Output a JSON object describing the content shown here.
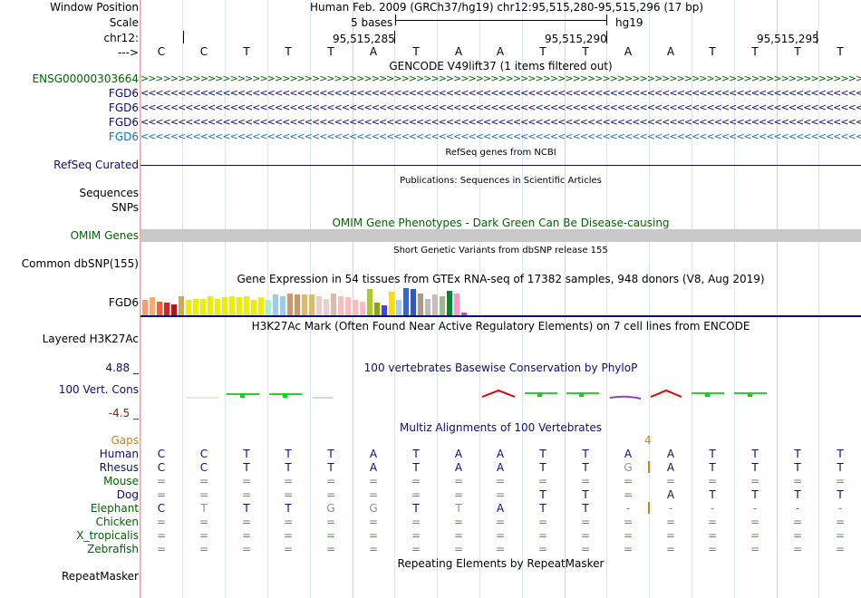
{
  "header": {
    "window_position_label": "Window Position",
    "scale_label": "Scale",
    "chrom_label": "chr12:",
    "strand_label": "--->",
    "assembly_text": "Human Feb. 2009 (GRCh37/hg19)   chr12:95,515,280-95,515,296 (17 bp)",
    "scale_text": "5 bases",
    "scale_assembly": "hg19",
    "ruler_positions": [
      "95,515,285",
      "95,515,290",
      "95,515,295"
    ]
  },
  "sequence": [
    "C",
    "C",
    "T",
    "T",
    "T",
    "A",
    "T",
    "A",
    "A",
    "T",
    "T",
    "A",
    "A",
    "T",
    "T",
    "T",
    "T"
  ],
  "tracks": {
    "gencode": {
      "title": "GENCODE V49lift37 (1 items filtered out)",
      "genes": [
        {
          "name": "ENSG00000303664",
          "color": "#006400",
          "glyph": ">"
        },
        {
          "name": "FGD6",
          "color": "#0c0c78",
          "glyph": "<"
        },
        {
          "name": "FGD6",
          "color": "#0c0c78",
          "glyph": "<"
        },
        {
          "name": "FGD6",
          "color": "#0c0c78",
          "glyph": "<"
        },
        {
          "name": "FGD6",
          "color": "#1c6eb4",
          "glyph": "<"
        }
      ]
    },
    "refseq": {
      "title": "RefSeq genes from NCBI",
      "label": "RefSeq Curated",
      "color": "#0c0c78"
    },
    "publications": {
      "title": "Publications: Sequences in Scientific Articles",
      "label": "Sequences"
    },
    "snps_label": "SNPs",
    "omim": {
      "title": "OMIM Gene Phenotypes - Dark Green Can Be Disease-causing",
      "label": "OMIM Genes",
      "color": "#006400"
    },
    "dbsnp": {
      "title": "Short Genetic Variants from dbSNP release 155",
      "label": "Common dbSNP(155)"
    },
    "gtex": {
      "title": "Gene Expression in 54 tissues from GTEx RNA-seq of 17382 samples, 948 donors (V8, Aug 2019)",
      "label": "FGD6",
      "bars": [
        {
          "v": 0.55,
          "c": "#ff9a6a"
        },
        {
          "v": 0.65,
          "c": "#ffaa6a"
        },
        {
          "v": 0.5,
          "c": "#ff5a33"
        },
        {
          "v": 0.45,
          "c": "#dd2222"
        },
        {
          "v": 0.4,
          "c": "#bb1111"
        },
        {
          "v": 0.7,
          "c": "#ccaa55"
        },
        {
          "v": 0.55,
          "c": "#eeee00"
        },
        {
          "v": 0.6,
          "c": "#eeee00"
        },
        {
          "v": 0.6,
          "c": "#eeee00"
        },
        {
          "v": 0.7,
          "c": "#eeee00"
        },
        {
          "v": 0.6,
          "c": "#eeee00"
        },
        {
          "v": 0.65,
          "c": "#eeee00"
        },
        {
          "v": 0.7,
          "c": "#eeee00"
        },
        {
          "v": 0.65,
          "c": "#eeee00"
        },
        {
          "v": 0.7,
          "c": "#eeee00"
        },
        {
          "v": 0.55,
          "c": "#eeee00"
        },
        {
          "v": 0.65,
          "c": "#eeee00"
        },
        {
          "v": 0.55,
          "c": "#aaeecc"
        },
        {
          "v": 0.75,
          "c": "#99ccee"
        },
        {
          "v": 0.7,
          "c": "#99ccee"
        },
        {
          "v": 0.8,
          "c": "#cc9966"
        },
        {
          "v": 0.75,
          "c": "#cc9966"
        },
        {
          "v": 0.75,
          "c": "#ddbb66"
        },
        {
          "v": 0.75,
          "c": "#ddbb66"
        },
        {
          "v": 0.7,
          "c": "#eecccc"
        },
        {
          "v": 0.6,
          "c": "#eecccc"
        },
        {
          "v": 0.8,
          "c": "#ddbbaa"
        },
        {
          "v": 0.7,
          "c": "#ffbbbb"
        },
        {
          "v": 0.65,
          "c": "#ffbbbb"
        },
        {
          "v": 0.55,
          "c": "#ffbbbb"
        },
        {
          "v": 0.5,
          "c": "#ffbbbb"
        },
        {
          "v": 0.95,
          "c": "#aacc22"
        },
        {
          "v": 0.45,
          "c": "#88aa00"
        },
        {
          "v": 0.35,
          "c": "#4444ee"
        },
        {
          "v": 0.85,
          "c": "#ffdd00"
        },
        {
          "v": 0.55,
          "c": "#aaccee"
        },
        {
          "v": 1.0,
          "c": "#3366dd"
        },
        {
          "v": 0.95,
          "c": "#3355cc"
        },
        {
          "v": 0.8,
          "c": "#aa9988"
        },
        {
          "v": 0.6,
          "c": "#bbbbbb"
        },
        {
          "v": 0.75,
          "c": "#ccbbbb"
        },
        {
          "v": 0.7,
          "c": "#99bb88"
        },
        {
          "v": 0.9,
          "c": "#008833"
        },
        {
          "v": 0.8,
          "c": "#ff99cc"
        },
        {
          "v": 0.1,
          "c": "#cc44cc"
        }
      ]
    },
    "h3k27ac": {
      "title": "H3K27Ac Mark (Often Found Near Active Regulatory Elements) on 7 cell lines from ENCODE",
      "label": "Layered H3K27Ac"
    },
    "phylop": {
      "title": "100 vertebrates Basewise Conservation by PhyloP",
      "label": "100 Vert. Cons",
      "max_label": "4.88 _",
      "min_label": "-4.5 _",
      "max_color": "#0c0c78",
      "min_color": "#8b2500"
    },
    "multiz": {
      "title": "Multiz Alignments of 100 Vertebrates",
      "gaps_label": "Gaps",
      "gaps_value": "4",
      "gaps_color": "#d2810f",
      "species": [
        {
          "name": "Human",
          "color": "#0c0c78",
          "bases": [
            "C",
            "C",
            "T",
            "T",
            "T",
            "A",
            "T",
            "A",
            "A",
            "T",
            "T",
            "A",
            "A",
            "T",
            "T",
            "T",
            "T"
          ]
        },
        {
          "name": "Rhesus",
          "color": "#0c0c78",
          "bases": [
            "C",
            "C",
            "T",
            "T",
            "T",
            "A",
            "T",
            "A",
            "A",
            "T",
            "T",
            "G",
            "A",
            "T",
            "T",
            "T",
            "T"
          ]
        },
        {
          "name": "Mouse",
          "color": "#006400",
          "bases": [
            "=",
            "=",
            "=",
            "=",
            "=",
            "=",
            "=",
            "=",
            "=",
            "=",
            "=",
            "=",
            "=",
            "=",
            "=",
            "=",
            "="
          ]
        },
        {
          "name": "Dog",
          "color": "#0c0c78",
          "bases": [
            "=",
            "=",
            "=",
            "=",
            "=",
            "=",
            "=",
            "=",
            "=",
            "T",
            "T",
            "=",
            "A",
            "T",
            "T",
            "T",
            "T"
          ]
        },
        {
          "name": "Elephant",
          "color": "#006400",
          "bases": [
            "C",
            "T",
            "T",
            "T",
            "G",
            "G",
            "T",
            "T",
            "A",
            "T",
            "T",
            "-",
            "-",
            "-",
            "-",
            "-",
            "-"
          ]
        },
        {
          "name": "Chicken",
          "color": "#006400",
          "bases": [
            "=",
            "=",
            "=",
            "=",
            "=",
            "=",
            "=",
            "=",
            "=",
            "=",
            "=",
            "=",
            "=",
            "=",
            "=",
            "=",
            "="
          ]
        },
        {
          "name": "X_tropicalis",
          "color": "#006400",
          "bases": [
            "=",
            "=",
            "=",
            "=",
            "=",
            "=",
            "=",
            "=",
            "=",
            "=",
            "=",
            "=",
            "=",
            "=",
            "=",
            "=",
            "="
          ]
        },
        {
          "name": "Zebrafish",
          "color": "#006400",
          "bases": [
            "=",
            "=",
            "=",
            "=",
            "=",
            "=",
            "=",
            "=",
            "=",
            "=",
            "=",
            "=",
            "=",
            "=",
            "=",
            "=",
            "="
          ]
        }
      ]
    },
    "repeatmasker": {
      "title": "Repeating Elements by RepeatMasker",
      "label": "RepeatMasker"
    }
  }
}
